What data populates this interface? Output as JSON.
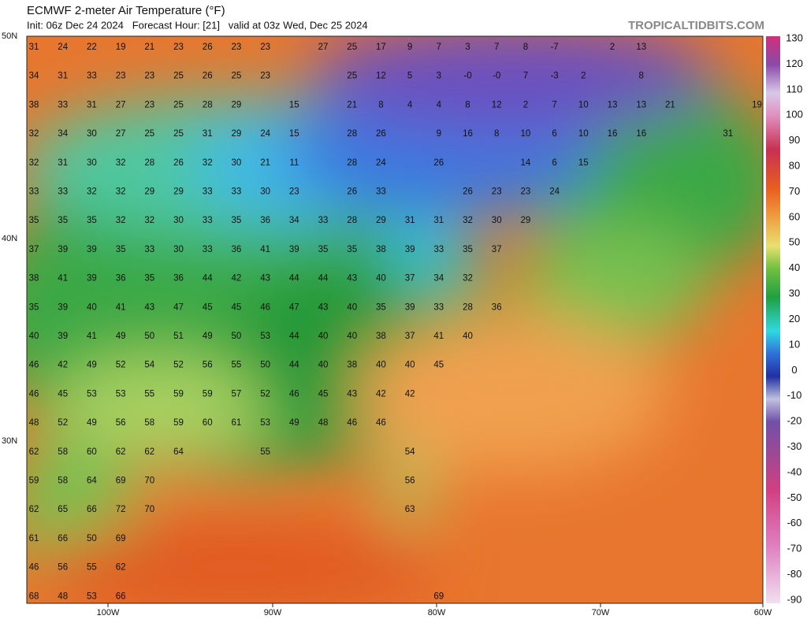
{
  "header": {
    "title": "ECMWF 2-meter Air Temperature (°F)",
    "subtitle": "Init: 06z Dec 24 2024   Forecast Hour: [21]   valid at 03z Wed, Dec 25 2024",
    "site": "TROPICALTIDBITS.COM"
  },
  "axes": {
    "lat_labels": [
      "50N",
      "40N",
      "30N"
    ],
    "lon_labels": [
      "100W",
      "90W",
      "80W",
      "70W",
      "60W"
    ]
  },
  "colorbar": {
    "labels": [
      "130",
      "120",
      "110",
      "100",
      "90",
      "80",
      "70",
      "60",
      "50",
      "40",
      "30",
      "20",
      "10",
      "0",
      "-10",
      "-20",
      "-30",
      "-40",
      "-50",
      "-60",
      "-70",
      "-80",
      "-90"
    ]
  },
  "station_values": [
    [
      "31",
      "24",
      "22",
      "19",
      "21",
      "23",
      "26",
      "23",
      "23",
      "27",
      "25",
      "17",
      "9",
      "7",
      "3",
      "7",
      "8",
      "-7",
      "2",
      "13"
    ],
    [
      "34",
      "31",
      "33",
      "23",
      "23",
      "25",
      "26",
      "25",
      "23",
      "25",
      "12",
      "5",
      "3",
      "-0",
      "-0",
      "7",
      "-3",
      "2",
      "8"
    ],
    [
      "38",
      "33",
      "31",
      "27",
      "23",
      "25",
      "28",
      "29",
      "15",
      "21",
      "8",
      "4",
      "4",
      "8",
      "12",
      "2",
      "7",
      "10",
      "13",
      "13",
      "21",
      "19"
    ],
    [
      "32",
      "34",
      "30",
      "27",
      "25",
      "25",
      "31",
      "29",
      "24",
      "15",
      "28",
      "26",
      "9",
      "16",
      "8",
      "10",
      "6",
      "10",
      "16",
      "16",
      "31"
    ],
    [
      "32",
      "31",
      "30",
      "32",
      "28",
      "26",
      "32",
      "30",
      "21",
      "11",
      "28",
      "24",
      "26",
      "14",
      "6",
      "15"
    ],
    [
      "33",
      "33",
      "32",
      "32",
      "29",
      "29",
      "33",
      "33",
      "30",
      "23",
      "26",
      "33",
      "26",
      "23",
      "23",
      "24"
    ],
    [
      "35",
      "35",
      "35",
      "32",
      "32",
      "30",
      "33",
      "35",
      "36",
      "34",
      "33",
      "28",
      "29",
      "31",
      "31",
      "32",
      "30",
      "29"
    ],
    [
      "37",
      "39",
      "39",
      "35",
      "33",
      "30",
      "33",
      "36",
      "41",
      "39",
      "35",
      "35",
      "38",
      "39",
      "33",
      "35",
      "37"
    ],
    [
      "38",
      "41",
      "39",
      "36",
      "35",
      "36",
      "44",
      "42",
      "43",
      "44",
      "44",
      "43",
      "40",
      "37",
      "34",
      "32"
    ],
    [
      "35",
      "39",
      "40",
      "41",
      "43",
      "47",
      "45",
      "45",
      "46",
      "47",
      "43",
      "40",
      "35",
      "39",
      "33",
      "28",
      "36"
    ],
    [
      "40",
      "39",
      "41",
      "49",
      "50",
      "51",
      "49",
      "50",
      "53",
      "44",
      "40",
      "40",
      "38",
      "37",
      "41",
      "40"
    ],
    [
      "46",
      "42",
      "49",
      "52",
      "54",
      "52",
      "56",
      "55",
      "50",
      "44",
      "40",
      "38",
      "40",
      "40",
      "45"
    ],
    [
      "46",
      "45",
      "53",
      "53",
      "55",
      "59",
      "59",
      "57",
      "52",
      "46",
      "45",
      "43",
      "42",
      "42"
    ],
    [
      "48",
      "52",
      "49",
      "56",
      "58",
      "59",
      "60",
      "61",
      "53",
      "49",
      "48",
      "46",
      "46"
    ],
    [
      "62",
      "58",
      "60",
      "62",
      "62",
      "64",
      "55",
      "54"
    ],
    [
      "59",
      "58",
      "64",
      "69",
      "70",
      "56"
    ],
    [
      "62",
      "65",
      "66",
      "72",
      "70",
      "63"
    ],
    [
      "61",
      "66",
      "50",
      "69"
    ],
    [
      "46",
      "56",
      "55",
      "62"
    ],
    [
      "68",
      "48",
      "53",
      "66",
      "69"
    ]
  ]
}
